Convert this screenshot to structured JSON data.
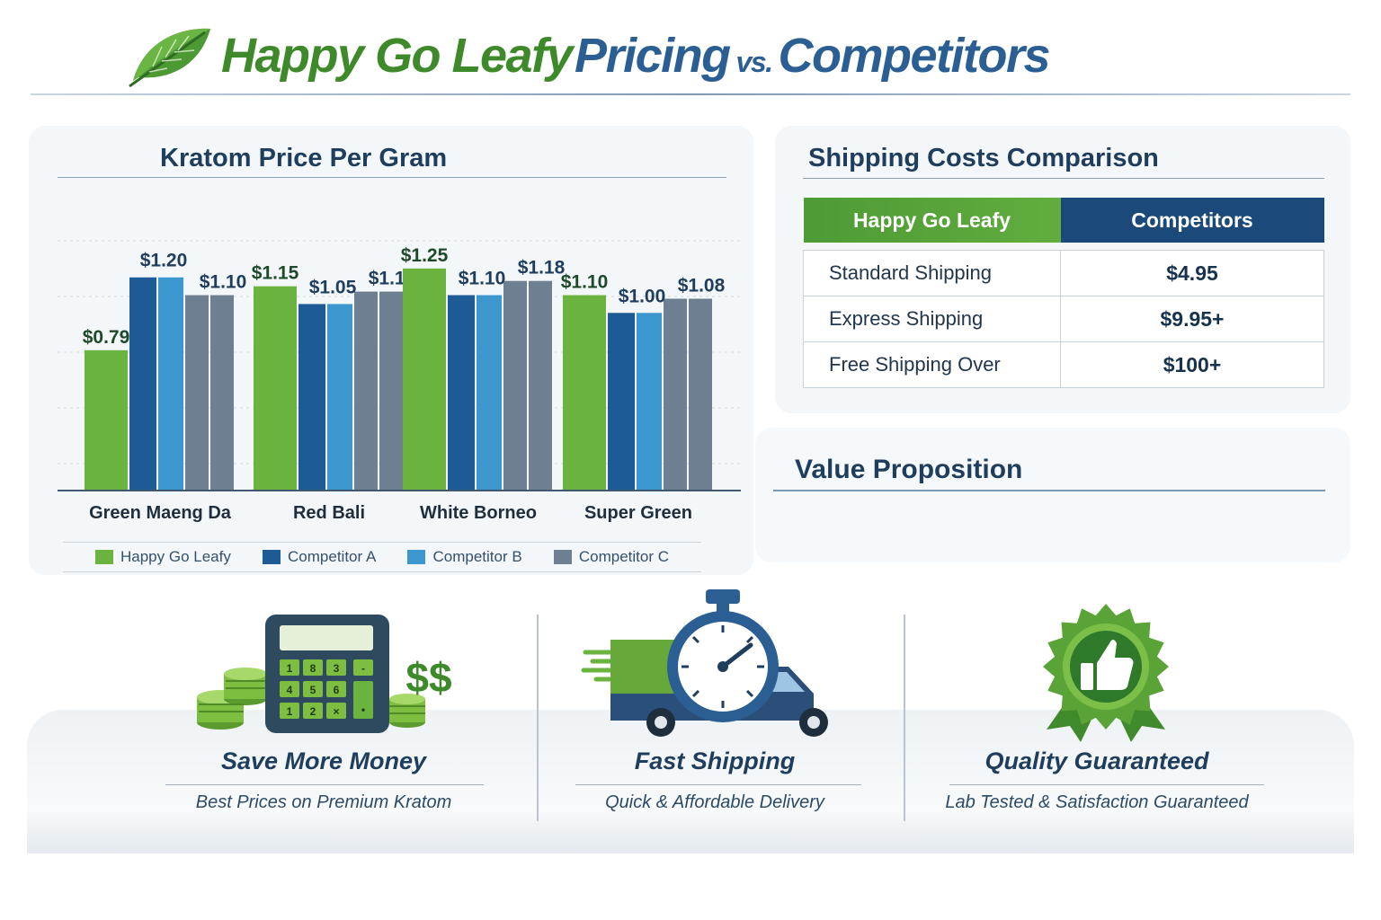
{
  "header": {
    "brand": "Happy Go Leafy",
    "pricing": "Pricing",
    "vs": "vs.",
    "competitors": "Competitors",
    "icon": "leaf-icon"
  },
  "chart_data": {
    "type": "bar",
    "title": "Kratom Price Per Gram",
    "categories": [
      "Green Maeng Da",
      "Red Bali",
      "White Borneo",
      "Super Green"
    ],
    "series": [
      {
        "name": "Happy Go Leafy",
        "color": "#6bb33f",
        "values": [
          0.79,
          1.15,
          1.25,
          1.1
        ]
      },
      {
        "name": "Competitor A",
        "color": "#1d5a96",
        "values": [
          1.2,
          1.05,
          1.1,
          1.0
        ]
      },
      {
        "name": "Competitor B",
        "color": "#3d97cf",
        "values": [
          1.2,
          1.05,
          1.1,
          1.0
        ]
      },
      {
        "name": "Competitor C",
        "color": "#6f7f92",
        "values": [
          1.1,
          1.12,
          1.18,
          1.08
        ]
      }
    ],
    "value_labels": [
      [
        "$0.79",
        "$1.20",
        "$1.10"
      ],
      [
        "$1.15",
        "$1.05",
        "$1.12"
      ],
      [
        "$1.25",
        "$1.10",
        "$1.18"
      ],
      [
        "$1.10",
        "$1.00",
        "$1.08"
      ]
    ],
    "grid": true,
    "legend": "bottom"
  },
  "shipping": {
    "title": "Shipping Costs Comparison",
    "headers": [
      "Happy Go Leafy",
      "Competitors"
    ],
    "rows": [
      {
        "label": "Standard Shipping",
        "value": "$4.95"
      },
      {
        "label": "Express Shipping",
        "value": "$9.95+"
      },
      {
        "label": "Free Shipping Over",
        "value": "$100+"
      }
    ]
  },
  "value_prop": {
    "title": "Value Proposition"
  },
  "features": [
    {
      "title": "Save More Money",
      "subtitle": "Best Prices on Premium Kratom",
      "icon": "calculator-money-icon"
    },
    {
      "title": "Fast Shipping",
      "subtitle": "Quick & Affordable Delivery",
      "icon": "stopwatch-truck-icon"
    },
    {
      "title": "Quality Guaranteed",
      "subtitle": "Lab Tested & Satisfaction Guaranteed",
      "icon": "thumbs-up-badge-icon"
    }
  ],
  "icon_text": {
    "calc_keys": [
      "1",
      "8",
      "3",
      "-",
      "4",
      "5",
      "6",
      "1",
      "2",
      "×",
      "•"
    ],
    "dollar": "$$"
  }
}
